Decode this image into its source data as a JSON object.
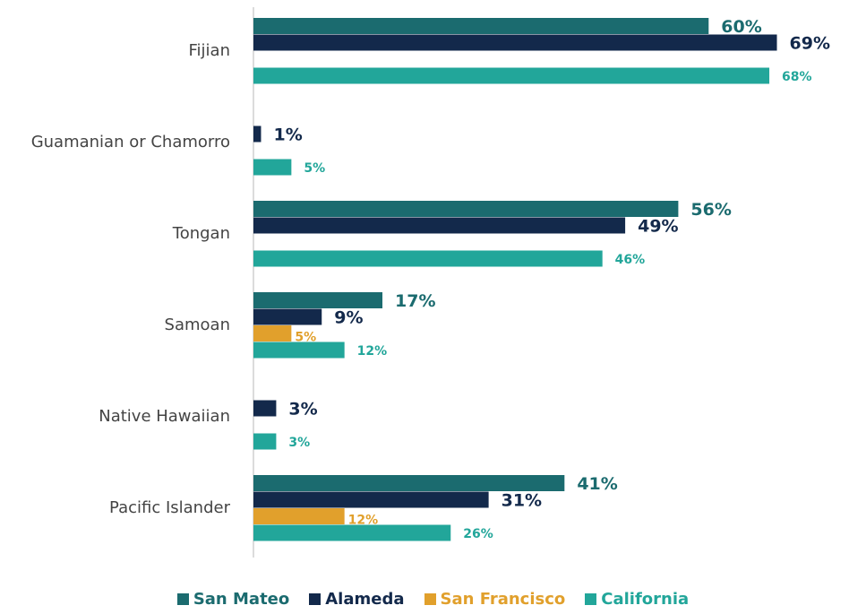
{
  "chart_data": {
    "type": "hbar",
    "categories": [
      "Fijian",
      "Guamanian or Chamorro",
      "Tongan",
      "Samoan",
      "Native Hawaiian",
      "Pacific Islander"
    ],
    "xlim": [
      0,
      70
    ],
    "series": [
      {
        "name": "San Mateo",
        "color": "#1b6b6f",
        "values": [
          60,
          null,
          56,
          17,
          null,
          41
        ],
        "value_labels": [
          "60%",
          null,
          "56%",
          "17%",
          null,
          "41%"
        ]
      },
      {
        "name": "Alameda",
        "color": "#13294b",
        "values": [
          69,
          1,
          49,
          9,
          3,
          31
        ],
        "value_labels": [
          "69%",
          "1%",
          "49%",
          "9%",
          "3%",
          "31%"
        ]
      },
      {
        "name": "San Francisco",
        "color": "#e1a02c",
        "values": [
          null,
          null,
          null,
          5,
          null,
          12
        ],
        "value_labels": [
          null,
          null,
          null,
          "5%",
          null,
          "12%"
        ]
      },
      {
        "name": "California",
        "color": "#22a69a",
        "values": [
          68,
          5,
          46,
          12,
          3,
          26
        ],
        "value_labels": [
          "68%",
          "5%",
          "46%",
          "12%",
          "3%",
          "26%"
        ]
      }
    ]
  }
}
